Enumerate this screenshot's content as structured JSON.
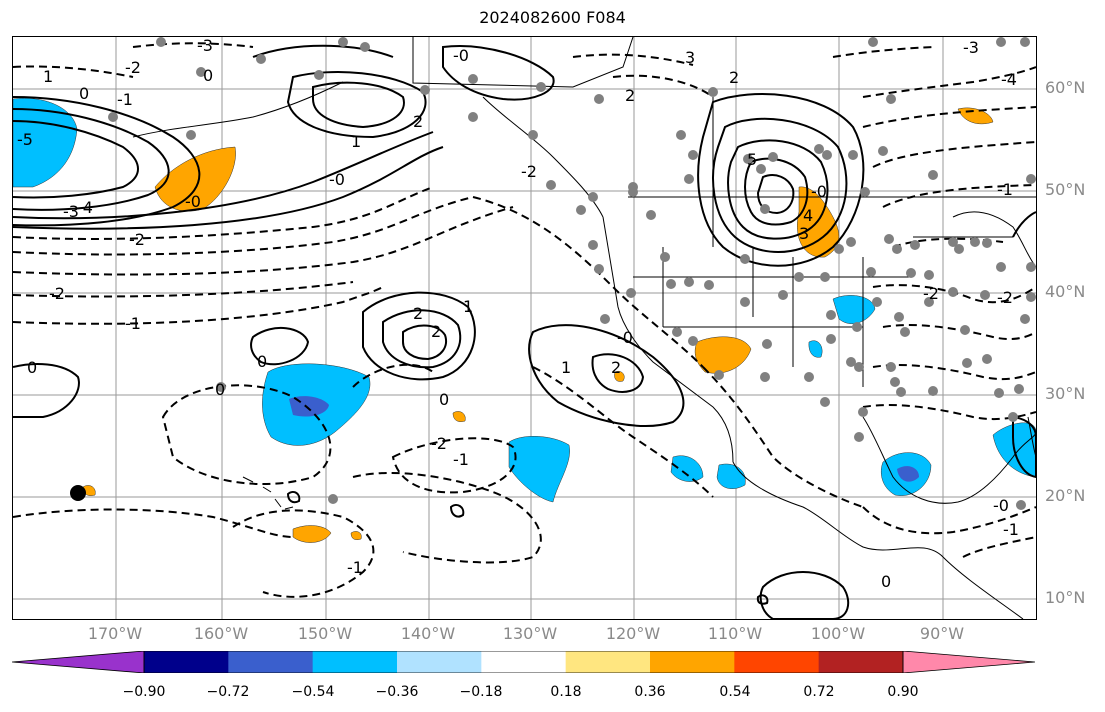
{
  "title": "2024082600 F084",
  "lat_labels": [
    "60°N",
    "50°N",
    "40°N",
    "30°N",
    "20°N",
    "10°N"
  ],
  "lon_labels": [
    "170°W",
    "160°W",
    "150°W",
    "140°W",
    "130°W",
    "120°W",
    "110°W",
    "100°W",
    "90°W"
  ],
  "colorbar": {
    "ticks": [
      "−0.90",
      "−0.72",
      "−0.54",
      "−0.36",
      "−0.18",
      "0.18",
      "0.36",
      "0.54",
      "0.72",
      "0.90"
    ],
    "colors": [
      "#9932cc",
      "#00008b",
      "#3a5fcd",
      "#00bfff",
      "#b0e2ff",
      "#ffffff",
      "#ffe680",
      "#ffa500",
      "#ff4500",
      "#b22222",
      "#ff88aa"
    ]
  },
  "contour_labels": {
    "a": "0",
    "b": "-2",
    "c": "1",
    "d": "0",
    "e": "-1",
    "f": "-3",
    "g": "-3",
    "h": "-0",
    "i": "-2",
    "j": "2",
    "k": "3",
    "l": "-2",
    "m": "1",
    "n": "-0",
    "o": "2",
    "p": "-2",
    "q": "-1",
    "r": "2",
    "s": "3",
    "t": "1",
    "u": "0",
    "v": "0",
    "w": "-2",
    "x": "-1",
    "y": "-0",
    "z": "1",
    "aa": "2",
    "ab": "0",
    "ac": "5",
    "ad": "4",
    "ae": "-0",
    "af": "-1",
    "ag": "-4",
    "ah": "-0",
    "ai": "-1",
    "aj": "0",
    "ak": "-2",
    "al": "-3",
    "am": "-5",
    "an": "-4",
    "ao": "-0",
    "ap": "-1",
    "aq": "-2"
  }
}
